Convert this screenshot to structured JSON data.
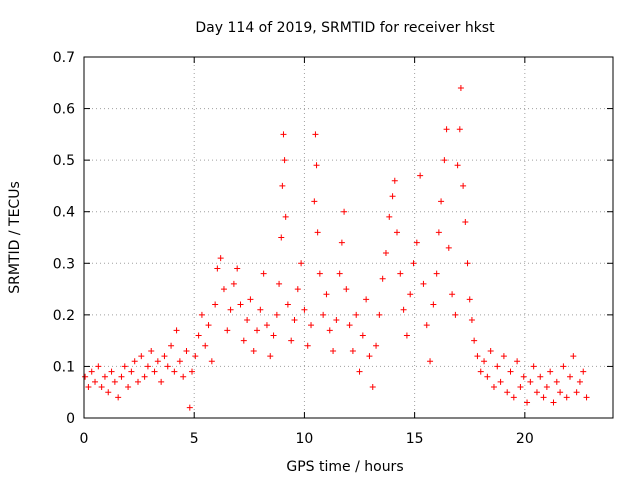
{
  "chart_data": {
    "type": "scatter",
    "title": "Day 114 of 2019, SRMTID for receiver hkst",
    "xlabel": "GPS time / hours",
    "ylabel": "SRMTID / TECUs",
    "xlim": [
      0,
      24
    ],
    "ylim": [
      0,
      0.7
    ],
    "xticks": [
      0,
      5,
      10,
      15,
      20
    ],
    "yticks": [
      0,
      0.1,
      0.2,
      0.3,
      0.4,
      0.5,
      0.6,
      0.7
    ],
    "xtick_labels": [
      "0",
      "5",
      "10",
      "15",
      "20"
    ],
    "ytick_labels": [
      "0",
      "0.1",
      "0.2",
      "0.3",
      "0.4",
      "0.5",
      "0.6",
      "0.7"
    ],
    "grid": true,
    "marker": "+",
    "color": "#ff0000",
    "series": [
      {
        "name": "hkst",
        "points": [
          [
            0.05,
            0.08
          ],
          [
            0.2,
            0.06
          ],
          [
            0.35,
            0.09
          ],
          [
            0.5,
            0.07
          ],
          [
            0.65,
            0.1
          ],
          [
            0.8,
            0.06
          ],
          [
            0.95,
            0.08
          ],
          [
            1.1,
            0.05
          ],
          [
            1.25,
            0.09
          ],
          [
            1.4,
            0.07
          ],
          [
            1.55,
            0.04
          ],
          [
            1.7,
            0.08
          ],
          [
            1.85,
            0.1
          ],
          [
            2.0,
            0.06
          ],
          [
            2.15,
            0.09
          ],
          [
            2.3,
            0.11
          ],
          [
            2.45,
            0.07
          ],
          [
            2.6,
            0.12
          ],
          [
            2.75,
            0.08
          ],
          [
            2.9,
            0.1
          ],
          [
            3.05,
            0.13
          ],
          [
            3.2,
            0.09
          ],
          [
            3.35,
            0.11
          ],
          [
            3.5,
            0.07
          ],
          [
            3.65,
            0.12
          ],
          [
            3.8,
            0.1
          ],
          [
            3.95,
            0.14
          ],
          [
            4.1,
            0.09
          ],
          [
            4.2,
            0.17
          ],
          [
            4.35,
            0.11
          ],
          [
            4.5,
            0.08
          ],
          [
            4.65,
            0.13
          ],
          [
            4.8,
            0.02
          ],
          [
            4.9,
            0.09
          ],
          [
            5.05,
            0.12
          ],
          [
            5.2,
            0.16
          ],
          [
            5.35,
            0.2
          ],
          [
            5.5,
            0.14
          ],
          [
            5.65,
            0.18
          ],
          [
            5.8,
            0.11
          ],
          [
            5.95,
            0.22
          ],
          [
            6.05,
            0.29
          ],
          [
            6.2,
            0.31
          ],
          [
            6.35,
            0.25
          ],
          [
            6.5,
            0.17
          ],
          [
            6.65,
            0.21
          ],
          [
            6.8,
            0.26
          ],
          [
            6.95,
            0.29
          ],
          [
            7.1,
            0.22
          ],
          [
            7.25,
            0.15
          ],
          [
            7.4,
            0.19
          ],
          [
            7.55,
            0.23
          ],
          [
            7.7,
            0.13
          ],
          [
            7.85,
            0.17
          ],
          [
            8.0,
            0.21
          ],
          [
            8.15,
            0.28
          ],
          [
            8.3,
            0.18
          ],
          [
            8.45,
            0.12
          ],
          [
            8.6,
            0.16
          ],
          [
            8.75,
            0.2
          ],
          [
            8.85,
            0.26
          ],
          [
            8.95,
            0.35
          ],
          [
            9.0,
            0.45
          ],
          [
            9.05,
            0.55
          ],
          [
            9.1,
            0.5
          ],
          [
            9.15,
            0.39
          ],
          [
            9.25,
            0.22
          ],
          [
            9.4,
            0.15
          ],
          [
            9.55,
            0.19
          ],
          [
            9.7,
            0.25
          ],
          [
            9.85,
            0.3
          ],
          [
            10.0,
            0.21
          ],
          [
            10.15,
            0.14
          ],
          [
            10.3,
            0.18
          ],
          [
            10.45,
            0.42
          ],
          [
            10.5,
            0.55
          ],
          [
            10.55,
            0.49
          ],
          [
            10.6,
            0.36
          ],
          [
            10.7,
            0.28
          ],
          [
            10.85,
            0.2
          ],
          [
            11.0,
            0.24
          ],
          [
            11.15,
            0.17
          ],
          [
            11.3,
            0.13
          ],
          [
            11.45,
            0.19
          ],
          [
            11.6,
            0.28
          ],
          [
            11.7,
            0.34
          ],
          [
            11.8,
            0.4
          ],
          [
            11.9,
            0.25
          ],
          [
            12.05,
            0.18
          ],
          [
            12.2,
            0.13
          ],
          [
            12.35,
            0.2
          ],
          [
            12.5,
            0.09
          ],
          [
            12.65,
            0.16
          ],
          [
            12.8,
            0.23
          ],
          [
            12.95,
            0.12
          ],
          [
            13.1,
            0.06
          ],
          [
            13.25,
            0.14
          ],
          [
            13.4,
            0.2
          ],
          [
            13.55,
            0.27
          ],
          [
            13.7,
            0.32
          ],
          [
            13.85,
            0.39
          ],
          [
            14.0,
            0.43
          ],
          [
            14.1,
            0.46
          ],
          [
            14.2,
            0.36
          ],
          [
            14.35,
            0.28
          ],
          [
            14.5,
            0.21
          ],
          [
            14.65,
            0.16
          ],
          [
            14.8,
            0.24
          ],
          [
            14.95,
            0.3
          ],
          [
            15.1,
            0.34
          ],
          [
            15.25,
            0.47
          ],
          [
            15.4,
            0.26
          ],
          [
            15.55,
            0.18
          ],
          [
            15.7,
            0.11
          ],
          [
            15.85,
            0.22
          ],
          [
            16.0,
            0.28
          ],
          [
            16.1,
            0.36
          ],
          [
            16.2,
            0.42
          ],
          [
            16.35,
            0.5
          ],
          [
            16.45,
            0.56
          ],
          [
            16.55,
            0.33
          ],
          [
            16.7,
            0.24
          ],
          [
            16.85,
            0.2
          ],
          [
            16.95,
            0.49
          ],
          [
            17.05,
            0.56
          ],
          [
            17.1,
            0.64
          ],
          [
            17.2,
            0.45
          ],
          [
            17.3,
            0.38
          ],
          [
            17.4,
            0.3
          ],
          [
            17.5,
            0.23
          ],
          [
            17.6,
            0.19
          ],
          [
            17.7,
            0.15
          ],
          [
            17.85,
            0.12
          ],
          [
            18.0,
            0.09
          ],
          [
            18.15,
            0.11
          ],
          [
            18.3,
            0.08
          ],
          [
            18.45,
            0.13
          ],
          [
            18.6,
            0.06
          ],
          [
            18.75,
            0.1
          ],
          [
            18.9,
            0.07
          ],
          [
            19.05,
            0.12
          ],
          [
            19.2,
            0.05
          ],
          [
            19.35,
            0.09
          ],
          [
            19.5,
            0.04
          ],
          [
            19.65,
            0.11
          ],
          [
            19.8,
            0.06
          ],
          [
            19.95,
            0.08
          ],
          [
            20.1,
            0.03
          ],
          [
            20.25,
            0.07
          ],
          [
            20.4,
            0.1
          ],
          [
            20.55,
            0.05
          ],
          [
            20.7,
            0.08
          ],
          [
            20.85,
            0.04
          ],
          [
            21.0,
            0.06
          ],
          [
            21.15,
            0.09
          ],
          [
            21.3,
            0.03
          ],
          [
            21.45,
            0.07
          ],
          [
            21.6,
            0.05
          ],
          [
            21.75,
            0.1
          ],
          [
            21.9,
            0.04
          ],
          [
            22.05,
            0.08
          ],
          [
            22.2,
            0.12
          ],
          [
            22.35,
            0.05
          ],
          [
            22.5,
            0.07
          ],
          [
            22.65,
            0.09
          ],
          [
            22.8,
            0.04
          ]
        ]
      }
    ]
  }
}
